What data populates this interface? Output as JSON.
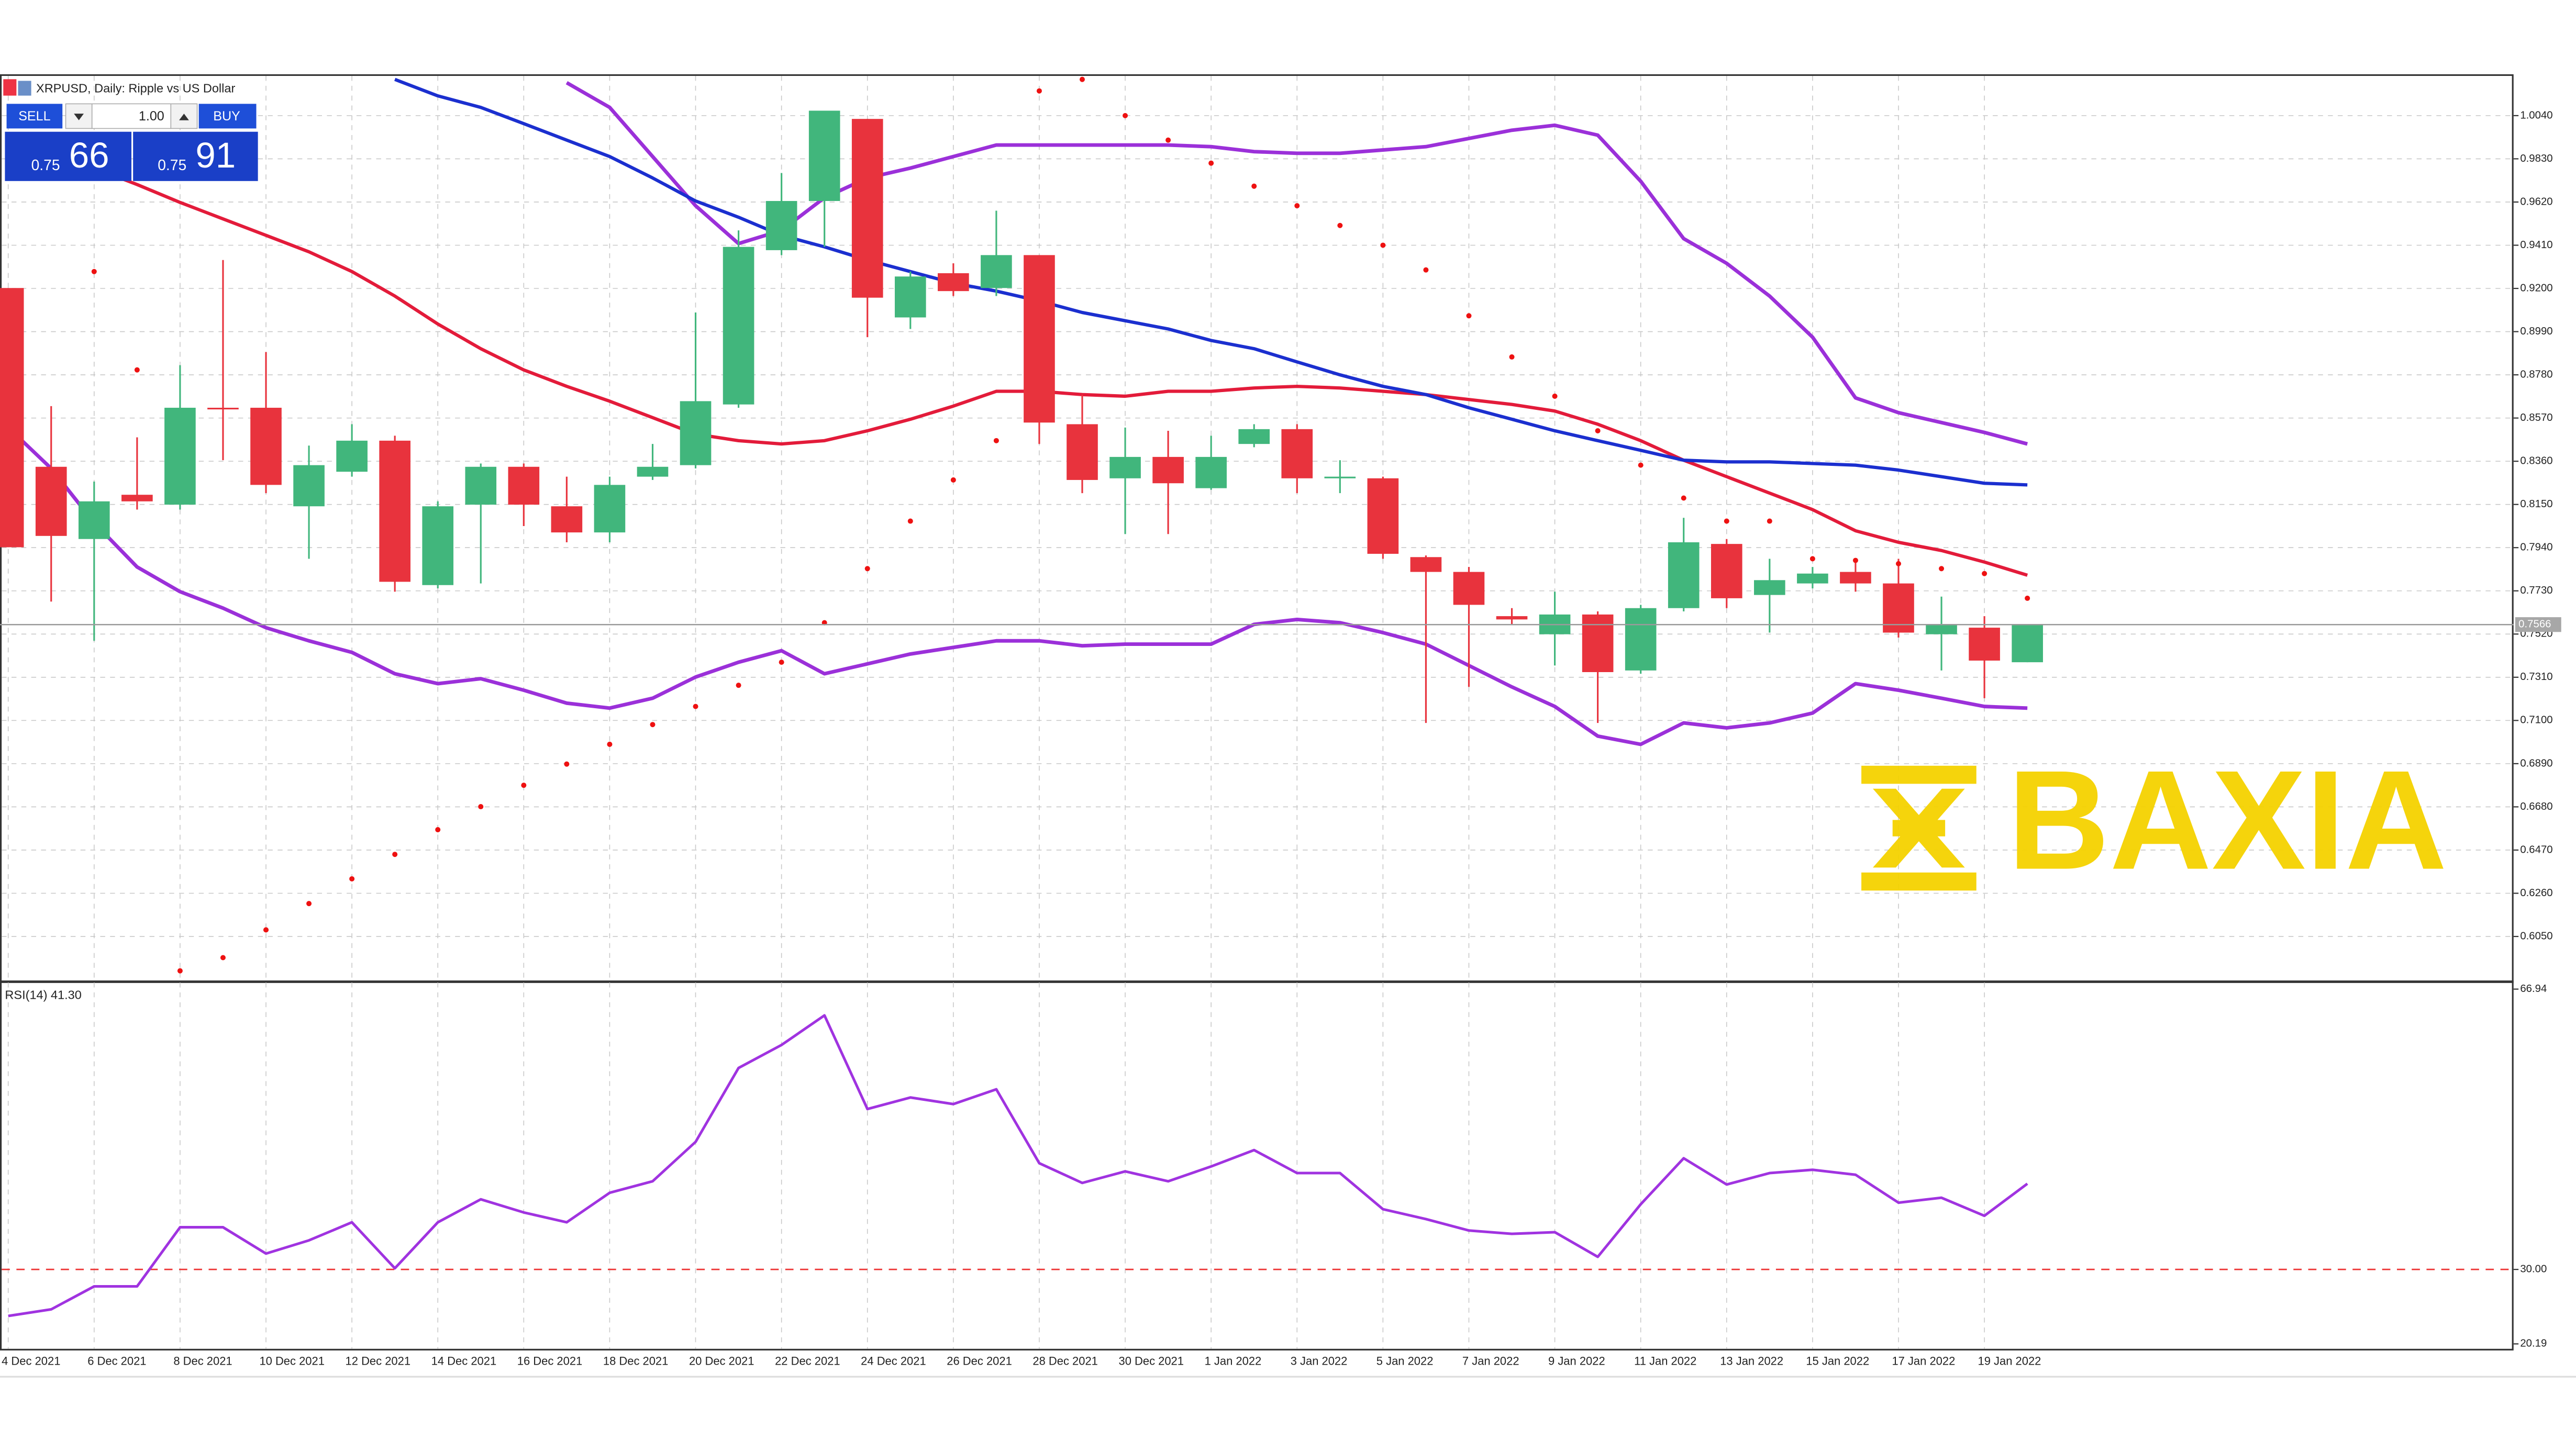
{
  "chart_data": [
    {
      "type": "candlestick",
      "title": "XRPUSD, Daily: Ripple vs US Dollar",
      "categories": [
        "4 Dec 2021",
        null,
        "6 Dec 2021",
        null,
        "8 Dec 2021",
        null,
        "10 Dec 2021",
        null,
        "12 Dec 2021",
        null,
        "14 Dec 2021",
        null,
        "16 Dec 2021",
        null,
        "18 Dec 2021",
        null,
        "20 Dec 2021",
        null,
        "22 Dec 2021",
        null,
        "24 Dec 2021",
        null,
        "26 Dec 2021",
        null,
        "28 Dec 2021",
        null,
        "30 Dec 2021",
        null,
        "1 Jan 2022",
        null,
        "3 Jan 2022",
        null,
        "5 Jan 2022",
        null,
        "7 Jan 2022",
        null,
        "9 Jan 2022",
        null,
        "11 Jan 2022",
        null,
        "13 Jan 2022",
        null,
        "15 Jan 2022",
        null,
        "17 Jan 2022",
        null,
        "19 Jan 2022",
        null
      ],
      "open": [
        0.9202,
        0.8333,
        0.7982,
        0.8197,
        0.8149,
        0.862,
        0.862,
        0.8141,
        0.8309,
        0.846,
        0.7758,
        0.8149,
        0.8333,
        0.8141,
        0.8014,
        0.8285,
        0.8341,
        0.8636,
        0.9386,
        0.9625,
        1.0024,
        0.9059,
        0.9274,
        0.9202,
        0.9362,
        0.854,
        0.8277,
        0.8381,
        0.8229,
        0.8444,
        0.8516,
        0.8277,
        0.8277,
        0.7894,
        0.7822,
        0.7607,
        0.7519,
        0.7615,
        0.7343,
        0.7646,
        0.7958,
        0.771,
        0.7766,
        0.7822,
        0.7766,
        0.7519,
        0.7551,
        0.7383
      ],
      "high": [
        0.9202,
        0.8628,
        0.8261,
        0.8476,
        0.8827,
        0.9338,
        0.8891,
        0.8436,
        0.854,
        0.8484,
        0.8165,
        0.8349,
        0.8349,
        0.8285,
        0.8285,
        0.8444,
        0.9083,
        0.9482,
        0.9761,
        1.0064,
        1.0024,
        0.9282,
        0.9322,
        0.9578,
        0.9362,
        0.8684,
        0.8524,
        0.8508,
        0.8484,
        0.854,
        0.854,
        0.8365,
        0.8285,
        0.7902,
        0.7846,
        0.7646,
        0.7726,
        0.763,
        0.7662,
        0.8085,
        0.7982,
        0.7886,
        0.7846,
        0.7886,
        0.7886,
        0.7702,
        0.7607,
        0.7567
      ],
      "low": [
        0.7942,
        0.7678,
        0.7487,
        0.8125,
        0.8125,
        0.8365,
        0.8205,
        0.7886,
        0.8285,
        0.7726,
        0.7742,
        0.7766,
        0.8045,
        0.7966,
        0.7966,
        0.8269,
        0.8325,
        0.862,
        0.9362,
        0.9402,
        0.8963,
        0.9003,
        0.9163,
        0.9163,
        0.8444,
        0.8205,
        0.8006,
        0.8006,
        0.8221,
        0.8428,
        0.8205,
        0.8205,
        0.7886,
        0.7088,
        0.7263,
        0.7567,
        0.7367,
        0.7088,
        0.7327,
        0.763,
        0.7646,
        0.7527,
        0.7742,
        0.7726,
        0.7503,
        0.7343,
        0.7208,
        0.7383
      ],
      "close": [
        0.7942,
        0.7997,
        0.8165,
        0.8165,
        0.862,
        0.8612,
        0.8245,
        0.8341,
        0.846,
        0.7774,
        0.8141,
        0.8333,
        0.8149,
        0.8014,
        0.8245,
        0.8333,
        0.8652,
        0.9402,
        0.9625,
        1.0064,
        0.9155,
        0.9258,
        0.9187,
        0.9362,
        0.8548,
        0.8269,
        0.8381,
        0.8253,
        0.8381,
        0.8516,
        0.8277,
        0.8285,
        0.791,
        0.7822,
        0.7662,
        0.7591,
        0.7615,
        0.7335,
        0.7646,
        0.7966,
        0.7694,
        0.7782,
        0.7814,
        0.7766,
        0.7527,
        0.7567,
        0.7391,
        0.7567
      ],
      "up_color": "#41b67c",
      "down_color": "#e8333d",
      "series": [
        {
          "color": "#9b30d9",
          "values": [
            0.8524,
            0.8325,
            0.8061,
            0.7846,
            0.7726,
            0.7646,
            0.7551,
            0.7487,
            0.7431,
            0.7327,
            0.7279,
            0.7303,
            0.7247,
            0.7184,
            0.716,
            0.7208,
            0.7311,
            0.7383,
            0.7439,
            0.7327,
            0.7375,
            0.7423,
            0.7455,
            0.7487,
            0.7487,
            0.7463,
            0.7471,
            0.7471,
            0.7471,
            0.7567,
            0.7591,
            0.7575,
            0.7527,
            0.7471,
            0.7367,
            0.7263,
            0.7168,
            0.7024,
            0.6984,
            0.7088,
            0.7064,
            0.7088,
            0.7136,
            0.7279,
            0.7247,
            0.7208,
            0.7168,
            0.716
          ]
        },
        {
          "color": "#9b30d9",
          "values": [
            null,
            null,
            null,
            null,
            null,
            null,
            null,
            null,
            null,
            null,
            null,
            null,
            null,
            1.02,
            1.008,
            0.9841,
            0.9602,
            0.9418,
            0.9482,
            0.9641,
            0.9737,
            0.9785,
            0.9841,
            0.9897,
            0.9897,
            0.9897,
            0.9897,
            0.9897,
            0.9889,
            0.9865,
            0.9857,
            0.9857,
            0.9873,
            0.9889,
            0.9929,
            0.9969,
            0.9993,
            0.9945,
            0.9721,
            0.9442,
            0.9322,
            0.9163,
            0.8963,
            0.8668,
            0.8596,
            0.8548,
            0.85,
            0.8444
          ]
        },
        {
          "color": "#e31b3a",
          "values": [
            null,
            null,
            0.9785,
            0.9705,
            0.9618,
            0.9538,
            0.9458,
            0.9378,
            0.9282,
            0.9163,
            0.9027,
            0.8907,
            0.8804,
            0.8724,
            0.8652,
            0.8572,
            0.8492,
            0.846,
            0.8444,
            0.846,
            0.8508,
            0.8564,
            0.8628,
            0.87,
            0.87,
            0.8684,
            0.8676,
            0.87,
            0.87,
            0.8716,
            0.8724,
            0.8716,
            0.87,
            0.8684,
            0.866,
            0.8636,
            0.8604,
            0.854,
            0.846,
            0.8365,
            0.8285,
            0.8205,
            0.8125,
            0.8022,
            0.7966,
            0.7926,
            0.787,
            0.7806
          ]
        },
        {
          "color": "#1b2fcf",
          "values": [
            null,
            null,
            null,
            null,
            null,
            null,
            null,
            null,
            null,
            1.0216,
            1.0136,
            1.008,
            1.0001,
            0.9921,
            0.9841,
            0.9737,
            0.9625,
            0.9546,
            0.9458,
            0.9402,
            0.9338,
            0.9282,
            0.9226,
            0.9187,
            0.9139,
            0.9083,
            0.9043,
            0.9003,
            0.8947,
            0.8907,
            0.8843,
            0.878,
            0.8724,
            0.8684,
            0.862,
            0.8564,
            0.8508,
            0.846,
            0.8413,
            0.8365,
            0.8357,
            0.8357,
            0.8349,
            0.8341,
            0.8317,
            0.8285,
            0.8253,
            0.8245
          ]
        }
      ],
      "sar": {
        "color": "#ee1111",
        "values": [
          null,
          null,
          0.9282,
          0.8804,
          0.5883,
          0.5947,
          0.6082,
          0.621,
          0.633,
          0.6449,
          0.6569,
          0.6681,
          0.6785,
          0.6888,
          0.6984,
          0.708,
          0.7168,
          0.7271,
          0.7383,
          0.7575,
          0.7838,
          0.8069,
          0.8269,
          0.846,
          1.016,
          1.0216,
          1.004,
          0.9921,
          0.9809,
          0.9697,
          0.9602,
          0.9506,
          0.941,
          0.929,
          0.9067,
          0.8867,
          0.8676,
          0.8508,
          0.8341,
          0.8181,
          0.8069,
          0.8069,
          0.7886,
          0.7878,
          0.7862,
          0.7838,
          0.7814,
          0.7694
        ]
      },
      "current_price": {
        "value": 0.7566,
        "label": "0.7566"
      },
      "ylim": [
        0.5834,
        1.0241
      ],
      "yticks": [
        {
          "value": 0.605,
          "label": "0.6050"
        },
        {
          "value": 0.626,
          "label": "0.6260"
        },
        {
          "value": 0.647,
          "label": "0.6470"
        },
        {
          "value": 0.668,
          "label": "0.6680"
        },
        {
          "value": 0.689,
          "label": "0.6890"
        },
        {
          "value": 0.71,
          "label": "0.7100"
        },
        {
          "value": 0.731,
          "label": "0.7310"
        },
        {
          "value": 0.752,
          "label": "0.7520"
        },
        {
          "value": 0.773,
          "label": "0.7730"
        },
        {
          "value": 0.794,
          "label": "0.7940"
        },
        {
          "value": 0.815,
          "label": "0.8150"
        },
        {
          "value": 0.836,
          "label": "0.8360"
        },
        {
          "value": 0.857,
          "label": "0.8570"
        },
        {
          "value": 0.878,
          "label": "0.8780"
        },
        {
          "value": 0.899,
          "label": "0.8990"
        },
        {
          "value": 0.92,
          "label": "0.9200"
        },
        {
          "value": 0.941,
          "label": "0.9410"
        },
        {
          "value": 0.962,
          "label": "0.9620"
        },
        {
          "value": 0.983,
          "label": "0.9830"
        },
        {
          "value": 1.004,
          "label": "1.0040"
        }
      ],
      "grid": true
    },
    {
      "type": "line",
      "title": "RSI(14) 41.30",
      "series": [
        {
          "color": "#a033e0",
          "values": [
            23.87,
            24.74,
            27.77,
            27.77,
            35.56,
            35.56,
            32.09,
            33.83,
            36.21,
            30.15,
            36.21,
            39.24,
            37.51,
            36.21,
            40.1,
            41.62,
            46.81,
            56.55,
            59.58,
            63.48,
            51.14,
            52.66,
            51.79,
            53.74,
            44,
            41.4,
            42.92,
            41.62,
            43.57,
            45.73,
            42.7,
            42.7,
            37.94,
            36.64,
            35.13,
            34.69,
            34.91,
            31.66,
            38.59,
            44.65,
            41.19,
            42.7,
            43.13,
            42.48,
            38.8,
            39.45,
            37.07,
            41.3
          ]
        }
      ],
      "level": {
        "value": 30,
        "color": "#ee3333"
      },
      "ylim": [
        20.19,
        66.94
      ],
      "yticks": [
        {
          "value": 20.19,
          "label": "20.19"
        },
        {
          "value": 30,
          "label": "30.00"
        },
        66.94
      ]
    }
  ],
  "trade_panel": {
    "sell": "SELL",
    "volume": "1.00",
    "buy": "BUY",
    "bid_big": "0.75",
    "bid_small": "66",
    "ask_big": "0.75",
    "ask_small": "91"
  },
  "watermark": "BAXIA"
}
